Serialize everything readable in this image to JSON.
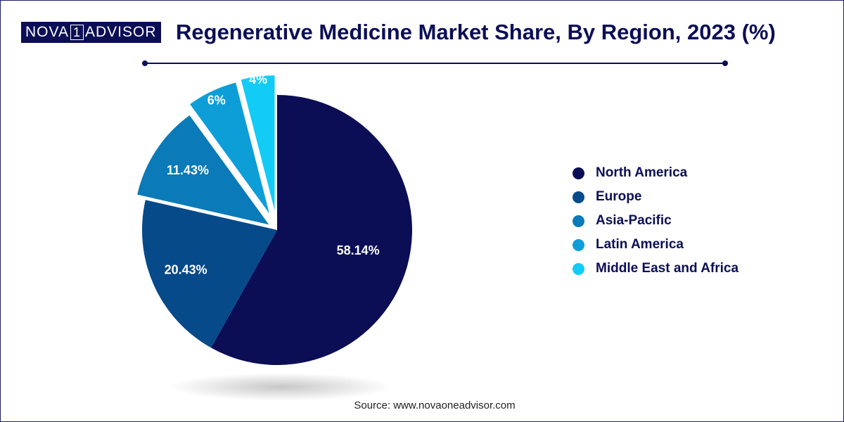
{
  "brand": {
    "part1": "NOVA",
    "part2": "1",
    "part3": "ADVISOR"
  },
  "chart_data": {
    "type": "pie",
    "title": "Regenerative Medicine Market Share, By Region, 2023 (%)",
    "categories": [
      "North America",
      "Europe",
      "Asia-Pacific",
      "Latin America",
      "Middle East and Africa"
    ],
    "values": [
      58.14,
      20.43,
      11.43,
      6,
      4
    ],
    "value_labels": [
      "58.14%",
      "20.43%",
      "11.43%",
      "6%",
      "4%"
    ],
    "colors": [
      "#0b0e55",
      "#064a8a",
      "#0a7ab8",
      "#0d9ed8",
      "#12ccf5"
    ],
    "legend_position": "right"
  },
  "source": "Source: www.novaoneadvisor.com"
}
